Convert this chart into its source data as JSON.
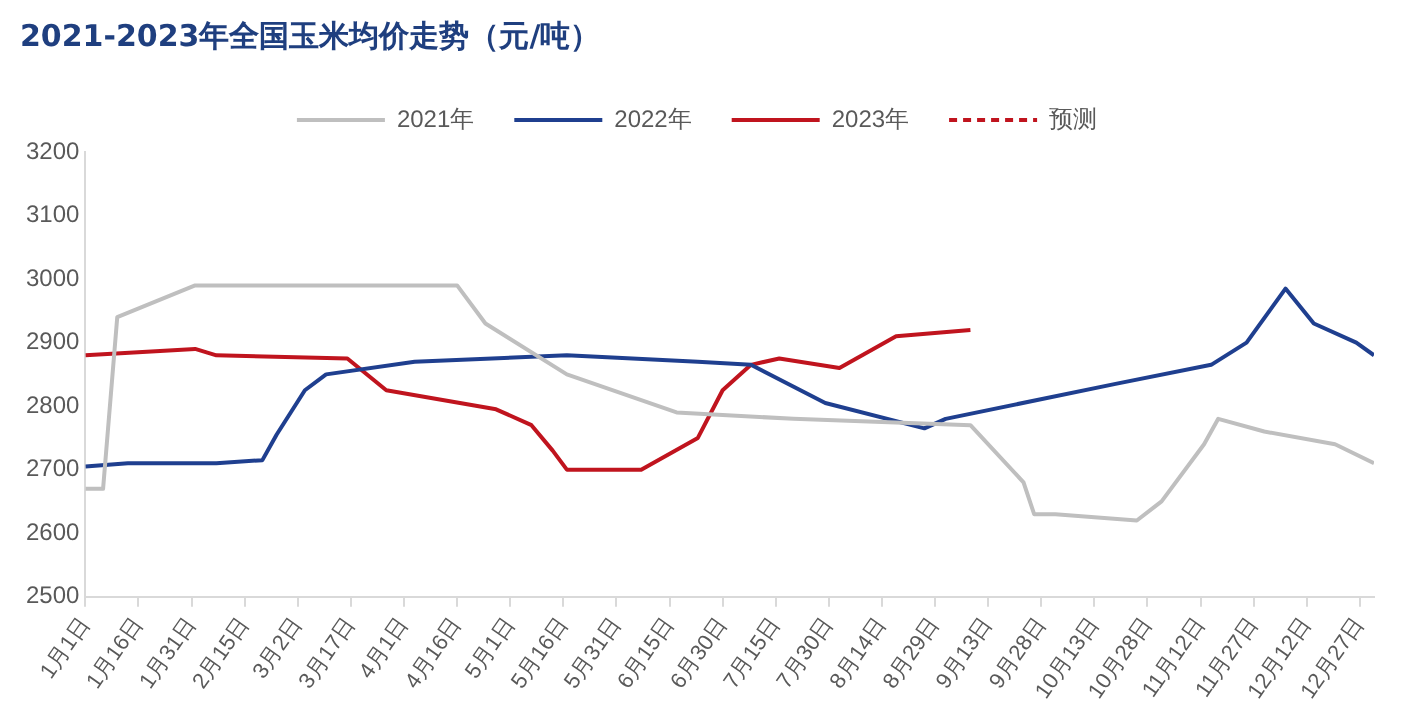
{
  "chart_data": {
    "type": "line",
    "title": "2021-2023年全国玉米均价走势（元/吨）",
    "series": [
      {
        "name": "2021年",
        "color": "#bfbfbf",
        "x": [
          "--01-01",
          "--01-06",
          "--01-10",
          "--02-01",
          "--04-16",
          "--04-24",
          "--05-17",
          "--06-17",
          "--07-20",
          "--09-08",
          "--09-23",
          "--09-26",
          "--10-02",
          "--10-25",
          "--11-01",
          "--11-13",
          "--11-17",
          "--11-30",
          "--12-20",
          "--12-31"
        ],
        "values": [
          2670,
          2670,
          2940,
          2990,
          2990,
          2930,
          2850,
          2790,
          2780,
          2770,
          2680,
          2630,
          2630,
          2620,
          2650,
          2740,
          2780,
          2760,
          2740,
          2710
        ]
      },
      {
        "name": "2022年",
        "color": "#1f3f8f",
        "x": [
          "--01-01",
          "--01-13",
          "--01-26",
          "--02-07",
          "--02-20",
          "--02-24",
          "--03-04",
          "--03-10",
          "--04-04",
          "--05-17",
          "--06-23",
          "--07-08",
          "--07-29",
          "--08-26",
          "--09-01",
          "--10-19",
          "--11-15",
          "--11-25",
          "--12-06",
          "--12-14",
          "--12-26",
          "--12-31"
        ],
        "values": [
          2705,
          2710,
          2710,
          2710,
          2715,
          2755,
          2825,
          2850,
          2870,
          2880,
          2870,
          2865,
          2805,
          2765,
          2780,
          2835,
          2865,
          2900,
          2985,
          2930,
          2900,
          2880
        ]
      },
      {
        "name": "2023年",
        "color": "#c0141e",
        "x": [
          "--01-01",
          "--02-01",
          "--02-07",
          "--03-16",
          "--03-27",
          "--04-27",
          "--05-07",
          "--05-13",
          "--05-17",
          "--06-07",
          "--06-23",
          "--06-30",
          "--07-08",
          "--07-16",
          "--08-02",
          "--08-18",
          "--09-08"
        ],
        "values": [
          2880,
          2890,
          2880,
          2875,
          2825,
          2795,
          2770,
          2730,
          2700,
          2700,
          2750,
          2825,
          2865,
          2875,
          2860,
          2910,
          2920
        ]
      },
      {
        "name": "预测",
        "color": "#c0141e",
        "line_style": "dashed"
      }
    ],
    "xlim": [
      "--01-01",
      "--12-31"
    ],
    "xticks": [
      {
        "value": "--01-01",
        "label": "1月1日"
      },
      {
        "value": "--01-16",
        "label": "1月16日"
      },
      {
        "value": "--01-31",
        "label": "1月31日"
      },
      {
        "value": "--02-15",
        "label": "2月15日"
      },
      {
        "value": "--03-02",
        "label": "3月2日"
      },
      {
        "value": "--03-17",
        "label": "3月17日"
      },
      {
        "value": "--04-01",
        "label": "4月1日"
      },
      {
        "value": "--04-16",
        "label": "4月16日"
      },
      {
        "value": "--05-01",
        "label": "5月1日"
      },
      {
        "value": "--05-16",
        "label": "5月16日"
      },
      {
        "value": "--05-31",
        "label": "5月31日"
      },
      {
        "value": "--06-15",
        "label": "6月15日"
      },
      {
        "value": "--06-30",
        "label": "6月30日"
      },
      {
        "value": "--07-15",
        "label": "7月15日"
      },
      {
        "value": "--07-30",
        "label": "7月30日"
      },
      {
        "value": "--08-14",
        "label": "8月14日"
      },
      {
        "value": "--08-29",
        "label": "8月29日"
      },
      {
        "value": "--09-13",
        "label": "9月13日"
      },
      {
        "value": "--09-28",
        "label": "9月28日"
      },
      {
        "value": "--10-13",
        "label": "10月13日"
      },
      {
        "value": "--10-28",
        "label": "10月28日"
      },
      {
        "value": "--11-12",
        "label": "11月12日"
      },
      {
        "value": "--11-27",
        "label": "11月27日"
      },
      {
        "value": "--12-12",
        "label": "12月12日"
      },
      {
        "value": "--12-27",
        "label": "12月27日"
      }
    ],
    "ylim": [
      2500,
      3200
    ],
    "yticks": [
      2500,
      2600,
      2700,
      2800,
      2900,
      3000,
      3100,
      3200
    ],
    "grid": false,
    "legend": "top",
    "marker": "none",
    "line_style": "solid"
  }
}
